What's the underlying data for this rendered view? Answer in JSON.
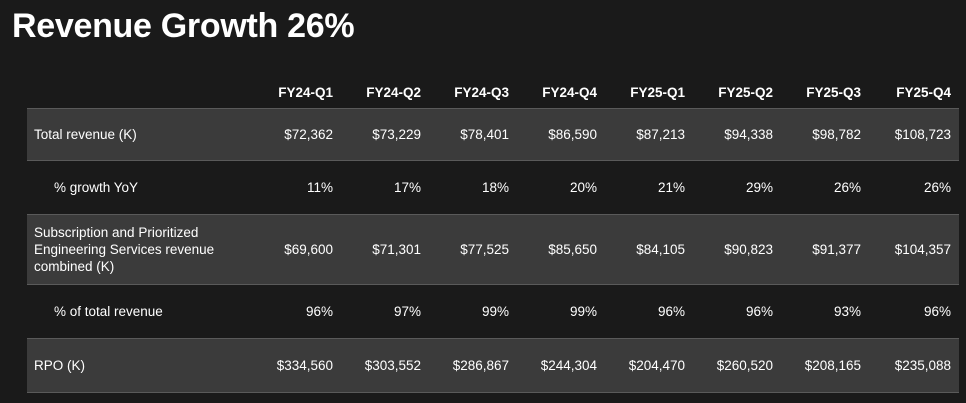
{
  "title": "Revenue Growth 26%",
  "table": {
    "columns": [
      "FY24-Q1",
      "FY24-Q2",
      "FY24-Q3",
      "FY24-Q4",
      "FY25-Q1",
      "FY25-Q2",
      "FY25-Q3",
      "FY25-Q4"
    ],
    "rows": [
      {
        "label": "Total revenue (K)",
        "values": [
          "$72,362",
          "$73,229",
          "$78,401",
          "$86,590",
          "$87,213",
          "$94,338",
          "$98,782",
          "$108,723"
        ]
      },
      {
        "label": "% growth YoY",
        "values": [
          "11%",
          "17%",
          "18%",
          "20%",
          "21%",
          "29%",
          "26%",
          "26%"
        ]
      },
      {
        "label": "Subscription and Prioritized Engineering Services revenue combined (K)",
        "values": [
          "$69,600",
          "$71,301",
          "$77,525",
          "$85,650",
          "$84,105",
          "$90,823",
          "$91,377",
          "$104,357"
        ]
      },
      {
        "label": "% of total revenue",
        "values": [
          "96%",
          "97%",
          "99%",
          "99%",
          "96%",
          "96%",
          "93%",
          "96%"
        ]
      },
      {
        "label": "RPO (K)",
        "values": [
          "$334,560",
          "$303,552",
          "$286,867",
          "$244,304",
          "$204,470",
          "$260,520",
          "$208,165",
          "$235,088"
        ]
      }
    ]
  }
}
